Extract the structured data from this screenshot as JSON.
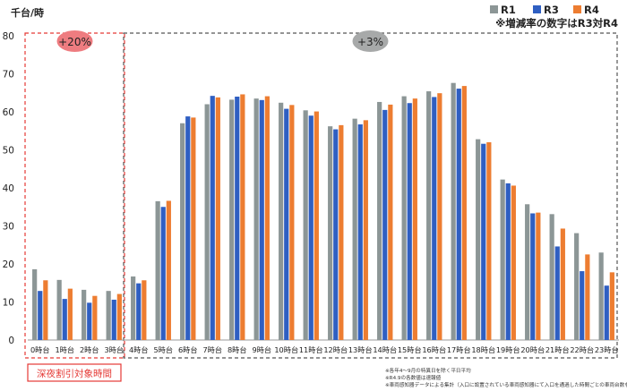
{
  "chart_data": {
    "type": "bar",
    "ylabel": "千台/時",
    "ylim": [
      0,
      80
    ],
    "yticks": [
      0,
      10,
      20,
      30,
      40,
      50,
      60,
      70,
      80
    ],
    "grid": false,
    "legend_position": "top-right",
    "categories": [
      "0時台",
      "1時台",
      "2時台",
      "3時台",
      "4時台",
      "5時台",
      "6時台",
      "7時台",
      "8時台",
      "9時台",
      "10時台",
      "11時台",
      "12時台",
      "13時台",
      "14時台",
      "15時台",
      "16時台",
      "17時台",
      "18時台",
      "19時台",
      "20時台",
      "21時台",
      "22時台",
      "23時台"
    ],
    "series": [
      {
        "name": "R1",
        "color": "#8c9696",
        "values": [
          18.6,
          15.8,
          13.2,
          12.9,
          16.7,
          36.5,
          57.0,
          62.0,
          63.2,
          63.5,
          62.4,
          60.4,
          56.2,
          58.2,
          62.6,
          64.1,
          65.4,
          67.6,
          52.8,
          42.2,
          35.7,
          33.1,
          28.1,
          23.0
        ]
      },
      {
        "name": "R3",
        "color": "#2f5fc2",
        "values": [
          12.9,
          10.8,
          9.8,
          10.6,
          14.9,
          35.0,
          58.8,
          64.2,
          64.0,
          63.1,
          60.8,
          59.0,
          55.4,
          56.7,
          60.5,
          62.3,
          63.9,
          66.1,
          51.6,
          41.2,
          33.3,
          24.6,
          18.1,
          14.3
        ]
      },
      {
        "name": "R4",
        "color": "#ed7d31",
        "values": [
          15.7,
          13.5,
          11.6,
          12.1,
          15.7,
          36.6,
          58.5,
          63.8,
          64.6,
          64.1,
          61.8,
          60.1,
          56.5,
          57.8,
          61.9,
          63.5,
          64.9,
          66.8,
          52.0,
          40.6,
          33.5,
          29.3,
          22.5,
          17.8
        ]
      }
    ],
    "note_top_right": "※増減率の数字はR3対R4",
    "regions": [
      {
        "label": "+20%",
        "start": 0,
        "end": 3,
        "color": "#e53935",
        "bubble_color": "#ee7c80"
      },
      {
        "label": "+3%",
        "start": 4,
        "end": 23,
        "color": "#555555",
        "bubble_color": "#a7a9a9"
      }
    ],
    "region_caption": "深夜割引対象時間",
    "footnotes": [
      "※各年4～9月の特異日を除く平日平均",
      "※R4.9の各数値は速報値",
      "※車両感知器データによる集計（入口に設置されている車両感知器にて入口を通過した時間ごとの車両台数を集計）"
    ]
  }
}
